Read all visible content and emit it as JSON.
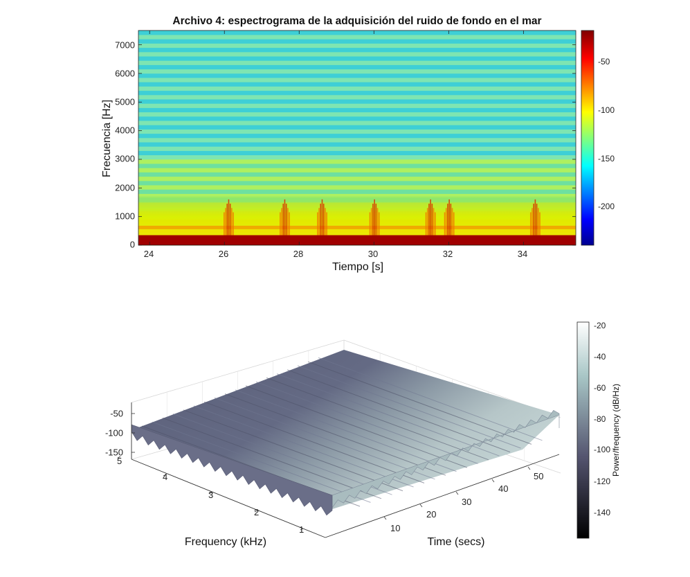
{
  "chart_data": [
    {
      "type": "heatmap",
      "title": "Archivo 4: espectrograma de la adquisición del ruido de fondo en el mar",
      "xlabel": "Tiempo [s]",
      "ylabel": "Frecuencia [Hz]",
      "xlim": [
        23.7,
        35.4
      ],
      "ylim": [
        0,
        7500
      ],
      "xticks": [
        "24",
        "26",
        "28",
        "30",
        "32",
        "34"
      ],
      "yticks": [
        "0",
        "1000",
        "2000",
        "3000",
        "4000",
        "5000",
        "6000",
        "7000"
      ],
      "colormap": "jet",
      "colorbar": {
        "ticks": [
          "-50",
          "-100",
          "-150",
          "-200"
        ],
        "range": [
          -235,
          -25
        ]
      },
      "bursts_time_s": [
        26.1,
        27.6,
        28.6,
        30.0,
        31.5,
        32.0,
        34.3
      ],
      "colors": {
        "high": "#a00000",
        "mid": "#f5e400",
        "low": "#3fd0d0"
      }
    },
    {
      "type": "area",
      "title": "",
      "xlabel": "Frequency (kHz)",
      "ylabel": "Time (secs)",
      "zticks": [
        "-50",
        "-100",
        "-150"
      ],
      "xticks": [
        "1",
        "2",
        "3",
        "4",
        "5"
      ],
      "yticks": [
        "10",
        "20",
        "30",
        "40",
        "50"
      ],
      "colormap": "bone",
      "colorbar": {
        "label": "Power/frequency (dB/Hz)",
        "ticks": [
          "-20",
          "-40",
          "-60",
          "-80",
          "-100",
          "-120",
          "-140"
        ],
        "range": [
          -158,
          -18
        ]
      }
    }
  ]
}
